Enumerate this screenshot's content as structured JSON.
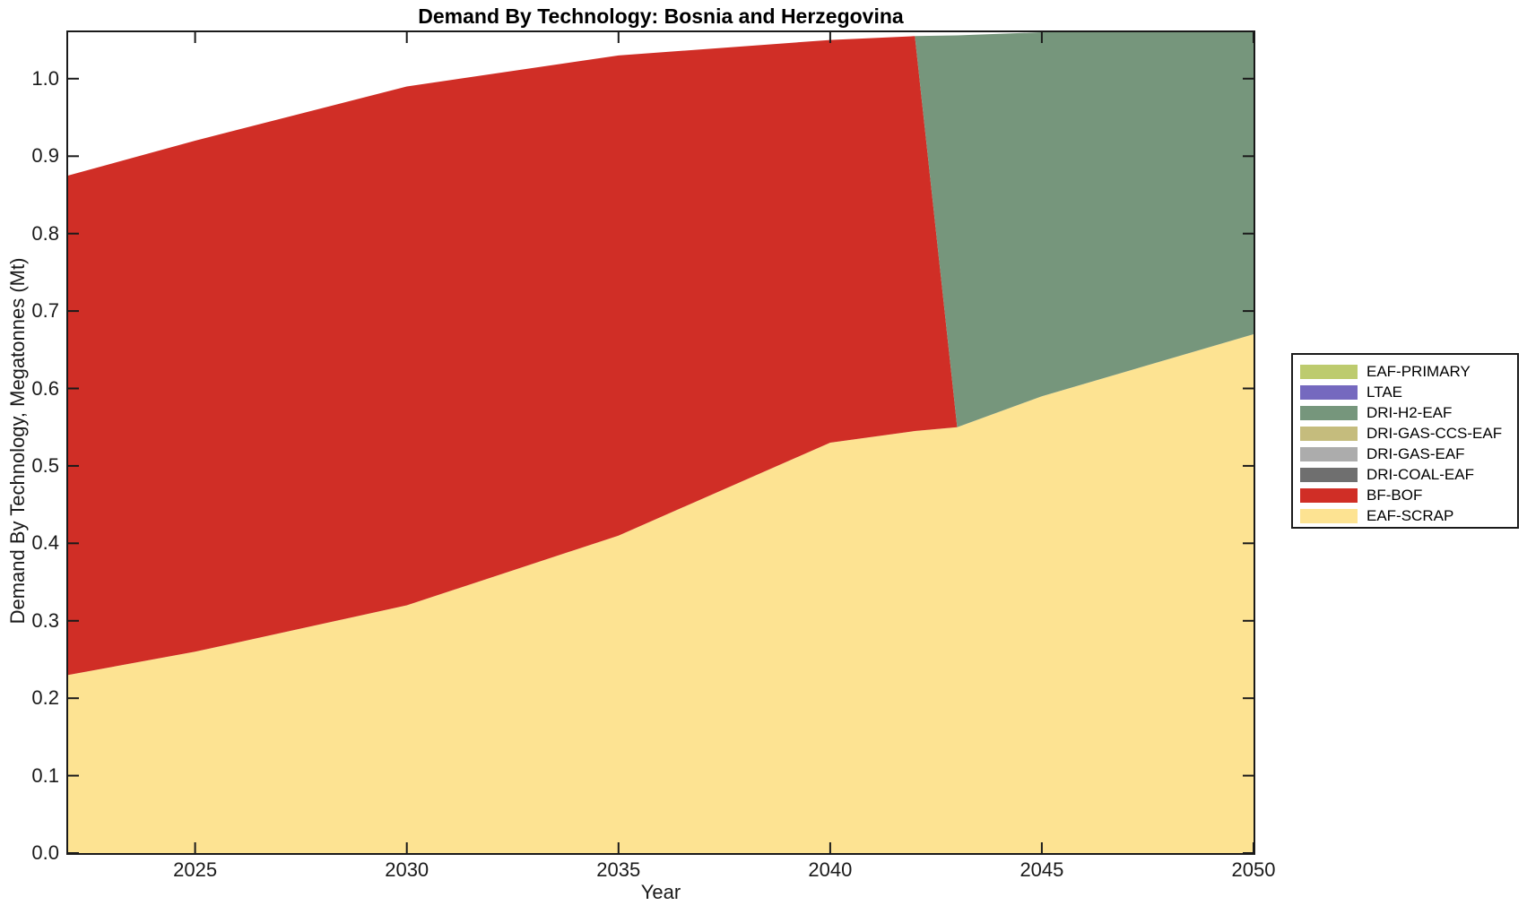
{
  "chart_data": {
    "type": "area",
    "stacked": true,
    "title": "Demand By Technology: Bosnia and Herzegovina",
    "xlabel": "Year",
    "ylabel": "Demand By Technology, Megatonnes (Mt)",
    "xlim": [
      2022,
      2050
    ],
    "ylim": [
      0,
      1.06
    ],
    "x_ticks": [
      2025,
      2030,
      2035,
      2040,
      2045,
      2050
    ],
    "y_ticks": [
      0.0,
      0.1,
      0.2,
      0.3,
      0.4,
      0.5,
      0.6,
      0.7,
      0.8,
      0.9,
      1.0
    ],
    "grid": false,
    "axis_color": "#1a1a1a",
    "background": "#ffffff",
    "x": [
      2022,
      2025,
      2030,
      2035,
      2040,
      2042,
      2043,
      2045,
      2050
    ],
    "series": [
      {
        "name": "EAF-SCRAP",
        "color": "#FDE392",
        "values": [
          0.23,
          0.26,
          0.32,
          0.41,
          0.53,
          0.545,
          0.55,
          0.59,
          0.67
        ]
      },
      {
        "name": "BF-BOF",
        "color": "#D02E26",
        "values": [
          0.645,
          0.66,
          0.67,
          0.62,
          0.52,
          0.51,
          0.0,
          0.0,
          0.0
        ]
      },
      {
        "name": "DRI-COAL-EAF",
        "color": "#6F6F6F",
        "values": [
          0,
          0,
          0,
          0,
          0,
          0,
          0,
          0,
          0
        ]
      },
      {
        "name": "DRI-GAS-EAF",
        "color": "#ACACAC",
        "values": [
          0,
          0,
          0,
          0,
          0,
          0,
          0,
          0,
          0
        ]
      },
      {
        "name": "DRI-GAS-CCS-EAF",
        "color": "#C5BC7D",
        "values": [
          0,
          0,
          0,
          0,
          0,
          0,
          0,
          0,
          0
        ]
      },
      {
        "name": "DRI-H2-EAF",
        "color": "#76967C",
        "values": [
          0,
          0,
          0,
          0,
          0,
          0,
          0.506,
          0.47,
          0.39
        ]
      },
      {
        "name": "LTAE",
        "color": "#7569BF",
        "values": [
          0,
          0,
          0,
          0,
          0,
          0,
          0,
          0,
          0
        ]
      },
      {
        "name": "EAF-PRIMARY",
        "color": "#BDCB6E",
        "values": [
          0,
          0,
          0,
          0,
          0,
          0,
          0,
          0,
          0
        ]
      }
    ],
    "legend": {
      "position": "right-outside",
      "items_top_to_bottom": [
        {
          "label": "EAF-PRIMARY",
          "color": "#BDCB6E"
        },
        {
          "label": "LTAE",
          "color": "#7569BF"
        },
        {
          "label": "DRI-H2-EAF",
          "color": "#76967C"
        },
        {
          "label": "DRI-GAS-CCS-EAF",
          "color": "#C5BC7D"
        },
        {
          "label": "DRI-GAS-EAF",
          "color": "#ACACAC"
        },
        {
          "label": "DRI-COAL-EAF",
          "color": "#6F6F6F"
        },
        {
          "label": "BF-BOF",
          "color": "#D02E26"
        },
        {
          "label": "EAF-SCRAP",
          "color": "#FDE392"
        }
      ]
    }
  }
}
